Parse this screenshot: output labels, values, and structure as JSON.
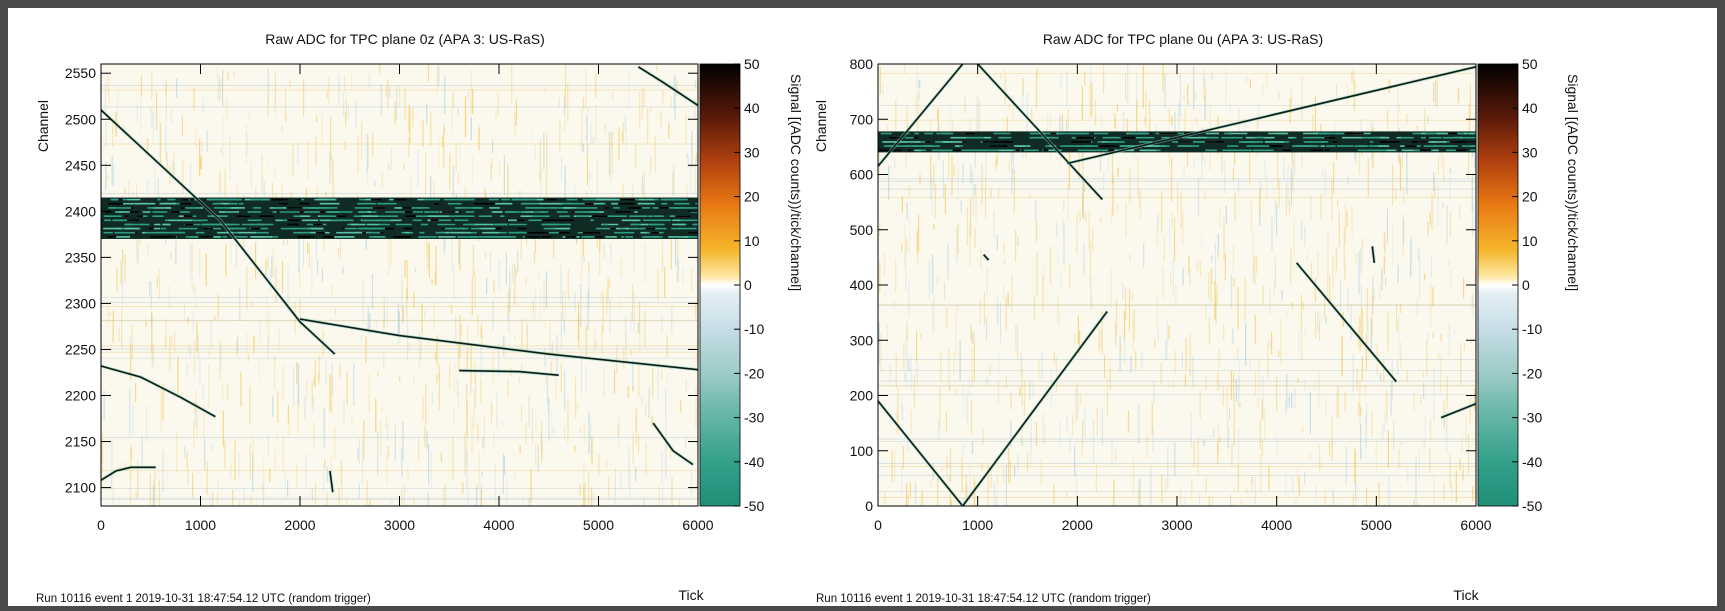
{
  "chart_data": [
    {
      "type": "heatmap",
      "title": "Raw ADC for TPC plane 0z (APA 3: US-RaS)",
      "xlabel": "Tick",
      "ylabel": "Channel",
      "zlabel": "Signal [(ADC counts))/tick/channel]",
      "footer": "Run 10116 event 1 2019-10-31 18:47:54.12 UTC (random trigger)",
      "xlim": [
        0,
        6000
      ],
      "ylim": [
        2080,
        2560
      ],
      "zlim": [
        -50,
        50
      ],
      "x_ticks": [
        0,
        1000,
        2000,
        3000,
        4000,
        5000,
        6000
      ],
      "y_ticks": [
        2100,
        2150,
        2200,
        2250,
        2300,
        2350,
        2400,
        2450,
        2500,
        2550
      ],
      "z_ticks": [
        50,
        40,
        30,
        20,
        10,
        0,
        -10,
        -20,
        -30,
        -40,
        -50
      ],
      "noisy_band": [
        2370,
        2415
      ],
      "tracks": [
        {
          "points": [
            [
              0,
              2510
            ],
            [
              1200,
              2390
            ],
            [
              2000,
              2280
            ],
            [
              2350,
              2245
            ]
          ]
        },
        {
          "points": [
            [
              2000,
              2283
            ],
            [
              3000,
              2265
            ],
            [
              4500,
              2245
            ],
            [
              6000,
              2228
            ]
          ]
        },
        {
          "points": [
            [
              0,
              2232
            ],
            [
              400,
              2220
            ],
            [
              800,
              2198
            ],
            [
              1150,
              2177
            ]
          ]
        },
        {
          "points": [
            [
              3600,
              2227
            ],
            [
              4200,
              2226
            ],
            [
              4600,
              2222
            ]
          ]
        },
        {
          "points": [
            [
              0,
              2108
            ],
            [
              150,
              2118
            ],
            [
              300,
              2122
            ],
            [
              550,
              2122
            ]
          ]
        },
        {
          "points": [
            [
              5400,
              2557
            ],
            [
              5650,
              2540
            ],
            [
              6000,
              2515
            ]
          ]
        },
        {
          "points": [
            [
              5550,
              2170
            ],
            [
              5750,
              2140
            ],
            [
              5950,
              2125
            ]
          ]
        },
        {
          "points": [
            [
              2300,
              2118
            ],
            [
              2330,
              2095
            ]
          ]
        }
      ]
    },
    {
      "type": "heatmap",
      "title": "Raw ADC for TPC plane 0u (APA 3: US-RaS)",
      "xlabel": "Tick",
      "ylabel": "Channel",
      "zlabel": "Signal [(ADC counts))/tick/channel]",
      "footer": "Run 10116 event 1 2019-10-31 18:47:54.12 UTC (random trigger)",
      "xlim": [
        0,
        6000
      ],
      "ylim": [
        0,
        800
      ],
      "zlim": [
        -50,
        50
      ],
      "x_ticks": [
        0,
        1000,
        2000,
        3000,
        4000,
        5000,
        6000
      ],
      "y_ticks": [
        0,
        100,
        200,
        300,
        400,
        500,
        600,
        700,
        800
      ],
      "z_ticks": [
        50,
        40,
        30,
        20,
        10,
        0,
        -10,
        -20,
        -30,
        -40,
        -50
      ],
      "noisy_band": [
        640,
        678
      ],
      "tracks": [
        {
          "points": [
            [
              0,
              615
            ],
            [
              850,
              800
            ]
          ]
        },
        {
          "points": [
            [
              1000,
              800
            ],
            [
              2250,
              555
            ]
          ]
        },
        {
          "points": [
            [
              1900,
              620
            ],
            [
              6000,
              795
            ]
          ]
        },
        {
          "points": [
            [
              0,
              190
            ],
            [
              850,
              0
            ]
          ]
        },
        {
          "points": [
            [
              850,
              0
            ],
            [
              2300,
              352
            ]
          ]
        },
        {
          "points": [
            [
              4200,
              440
            ],
            [
              5200,
              225
            ]
          ]
        },
        {
          "points": [
            [
              5650,
              160
            ],
            [
              6000,
              185
            ]
          ]
        },
        {
          "points": [
            [
              4960,
              470
            ],
            [
              4980,
              440
            ]
          ]
        },
        {
          "points": [
            [
              1060,
              455
            ],
            [
              1110,
              445
            ]
          ]
        }
      ]
    }
  ]
}
